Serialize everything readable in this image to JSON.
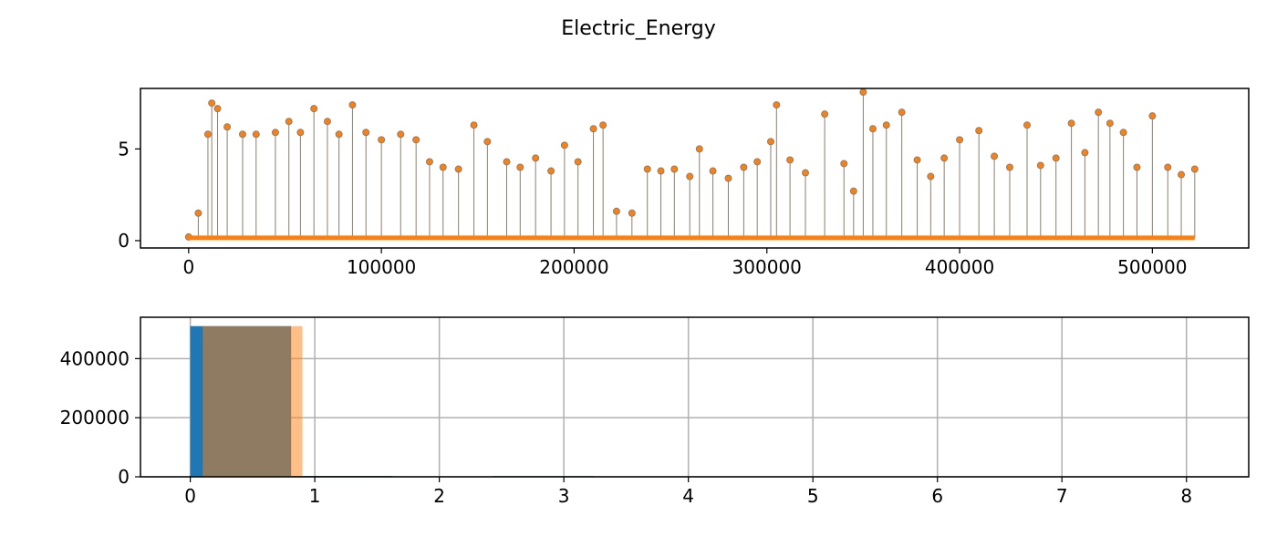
{
  "title": "Electric_Energy",
  "colors": {
    "series_a": "#1f77b4",
    "series_b": "#ff7f0e",
    "overlap": "#8c7a60",
    "stem": "#8a7f6e",
    "grid": "#b0b0b0"
  },
  "chart_data": [
    {
      "type": "line",
      "style": "stem-with-markers",
      "xlim": [
        -25000,
        550000
      ],
      "ylim": [
        -0.4,
        8.3
      ],
      "xticks": [
        0,
        100000,
        200000,
        300000,
        400000,
        500000
      ],
      "xtick_labels": [
        "0",
        "100000",
        "200000",
        "300000",
        "400000",
        "500000"
      ],
      "yticks": [
        0,
        5
      ],
      "ytick_labels": [
        "0",
        "5"
      ],
      "grid": false,
      "series": [
        {
          "x": [
            0,
            5000,
            10000,
            12000,
            15000,
            20000,
            28000,
            35000,
            45000,
            52000,
            58000,
            65000,
            72000,
            78000,
            85000,
            92000,
            100000,
            110000,
            118000,
            125000,
            132000,
            140000,
            148000,
            155000,
            165000,
            172000,
            180000,
            188000,
            195000,
            202000,
            210000,
            215000,
            222000,
            230000,
            238000,
            245000,
            252000,
            260000,
            265000,
            272000,
            280000,
            288000,
            295000,
            302000,
            305000,
            312000,
            320000,
            330000,
            340000,
            345000,
            350000,
            355000,
            362000,
            370000,
            378000,
            385000,
            392000,
            400000,
            410000,
            418000,
            426000,
            435000,
            442000,
            450000,
            458000,
            465000,
            472000,
            478000,
            485000,
            492000,
            500000,
            508000,
            515000,
            522000
          ],
          "y": [
            0.2,
            1.5,
            5.8,
            7.5,
            7.2,
            6.2,
            5.8,
            5.8,
            5.9,
            6.5,
            5.9,
            7.2,
            6.5,
            5.8,
            7.4,
            5.9,
            5.5,
            5.8,
            5.5,
            4.3,
            4.0,
            3.9,
            6.3,
            5.4,
            4.3,
            4.0,
            4.5,
            3.8,
            5.2,
            4.3,
            6.1,
            6.3,
            1.6,
            1.5,
            3.9,
            3.8,
            3.9,
            3.5,
            5.0,
            3.8,
            3.4,
            4.0,
            4.3,
            5.4,
            7.4,
            4.4,
            3.7,
            6.9,
            4.2,
            2.7,
            8.1,
            6.1,
            6.3,
            7.0,
            4.4,
            3.5,
            4.5,
            5.5,
            6.0,
            4.6,
            4.0,
            6.3,
            4.1,
            4.5,
            6.4,
            4.8,
            7.0,
            6.4,
            5.9,
            4.0,
            6.8,
            4.0,
            3.6,
            3.9
          ]
        }
      ]
    },
    {
      "type": "bar",
      "style": "overlaid-histogram",
      "xlim": [
        -0.4,
        8.5
      ],
      "ylim": [
        0,
        540000
      ],
      "xticks": [
        0,
        1,
        2,
        3,
        4,
        5,
        6,
        7,
        8
      ],
      "xtick_labels": [
        "0",
        "1",
        "2",
        "3",
        "4",
        "5",
        "6",
        "7",
        "8"
      ],
      "yticks": [
        0,
        200000,
        400000
      ],
      "ytick_labels": [
        "0",
        "200000",
        "400000"
      ],
      "grid": true,
      "series": [
        {
          "bins": [
            [
              0,
              0.81
            ],
            [
              0.81,
              1.62
            ],
            [
              1.62,
              2.43
            ],
            [
              2.43,
              3.24
            ],
            [
              3.24,
              4.05
            ]
          ],
          "values": [
            510000,
            3000,
            1500,
            2500,
            300
          ]
        },
        {
          "bins": [
            [
              0.1,
              0.9
            ],
            [
              0.9,
              1.7
            ],
            [
              1.7,
              2.5
            ],
            [
              2.5,
              3.3
            ]
          ],
          "values": [
            510000,
            2000,
            1500,
            2000
          ]
        }
      ]
    }
  ]
}
